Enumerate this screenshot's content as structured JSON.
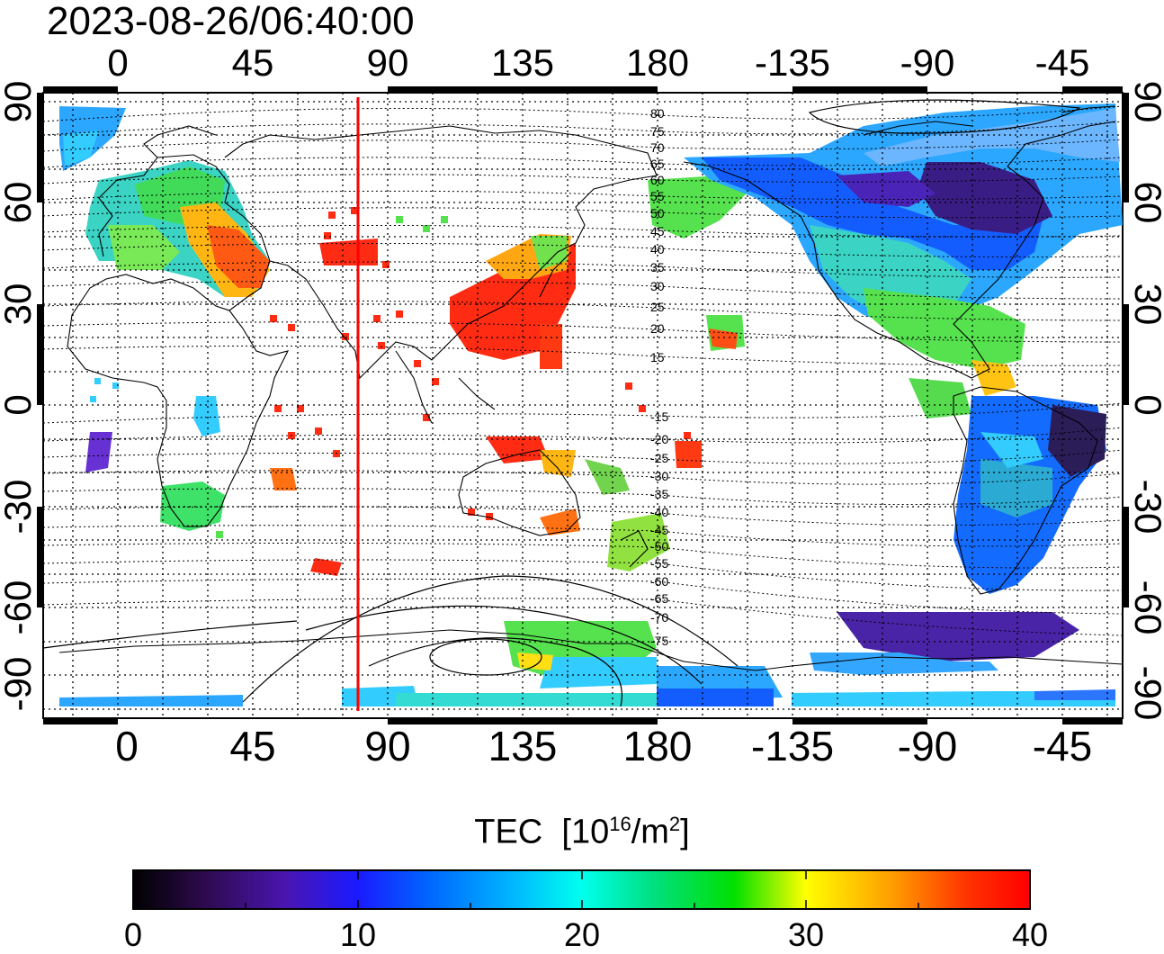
{
  "title": "2023-08-26/06:40:00",
  "map": {
    "lon_ticks": [
      "0",
      "45",
      "90",
      "135",
      "180",
      "-135",
      "-90",
      "-45"
    ],
    "lat_ticks": [
      "90",
      "60",
      "30",
      "0",
      "-30",
      "-60",
      "-90"
    ],
    "terminator_lon_deg": 80,
    "contour_labels_north": [
      "80",
      "75",
      "70",
      "65",
      "60",
      "55",
      "50",
      "45",
      "40",
      "35",
      "30",
      "25",
      "20",
      "15"
    ],
    "contour_labels_south": [
      "-15",
      "-20",
      "-25",
      "-30",
      "-35",
      "-40",
      "-45",
      "-50",
      "-55",
      "-60",
      "-65",
      "-70",
      "-75"
    ]
  },
  "colorbar": {
    "label": "TEC",
    "unit_base": "10",
    "unit_exp": "16",
    "unit_tail": "/m",
    "unit_tail_exp": "2",
    "ticks": [
      "0",
      "10",
      "20",
      "30",
      "40"
    ],
    "min": 0,
    "max": 40,
    "colors": [
      "#000000",
      "#3a0a6e",
      "#4b1fd8",
      "#0033ff",
      "#0077ff",
      "#00e5ff",
      "#00d060",
      "#00e000",
      "#80f000",
      "#ffff00",
      "#ff9900",
      "#ff3300",
      "#ff0000"
    ]
  }
}
